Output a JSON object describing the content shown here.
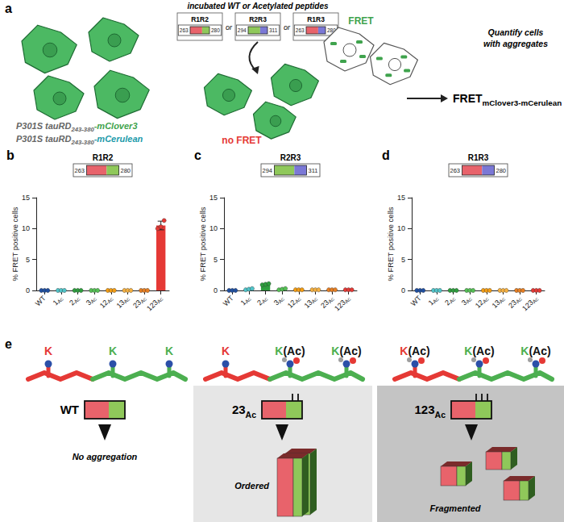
{
  "panel_a": {
    "letter": "a",
    "incubation_label": "incubated WT or Acetylated peptides",
    "peptides": [
      {
        "label": "R1R2",
        "start": 263,
        "end": 280,
        "colors": [
          "#e8636b",
          "#8fc85a"
        ]
      },
      {
        "label": "R2R3",
        "start": 294,
        "end": 311,
        "colors": [
          "#8fc85a",
          "#7b78d6"
        ]
      },
      {
        "label": "R1R3",
        "start": 263,
        "end": 280,
        "colors": [
          "#e8636b",
          "#7b78d6"
        ]
      }
    ],
    "separator": "or",
    "constructs": [
      {
        "text": "P301S tauRD",
        "sub": "243-380",
        "suffix": "-mClover3",
        "color": "#3fa34d"
      },
      {
        "text": "P301S tauRD",
        "sub": "243-380",
        "suffix": "-mCerulean",
        "color": "#1b9aaa"
      }
    ],
    "fret_label": "FRET",
    "no_fret_label": "no FRET",
    "quantify_label": [
      "Quantify cells",
      "with aggregates"
    ],
    "readout": {
      "text": "FRET",
      "sub": "mClover3-mCerulean"
    }
  },
  "chart_data": [
    {
      "letter": "b",
      "type": "bar",
      "title": "R1R2",
      "peptide": {
        "start": 263,
        "end": 280,
        "colors": [
          "#e8636b",
          "#8fc85a"
        ]
      },
      "categories": [
        "WT",
        "1Ac",
        "2Ac",
        "3Ac",
        "12Ac",
        "13Ac",
        "23Ac",
        "123Ac"
      ],
      "values": [
        0,
        0,
        0,
        0,
        0,
        0,
        0,
        10.5
      ],
      "replicates": [
        [
          0,
          0,
          0
        ],
        [
          0,
          0,
          0
        ],
        [
          0,
          0,
          0
        ],
        [
          0,
          0,
          0
        ],
        [
          0,
          0,
          0
        ],
        [
          0,
          0,
          0
        ],
        [
          0,
          0,
          0
        ],
        [
          10.0,
          10.3,
          11.3
        ]
      ],
      "errors": [
        0,
        0,
        0,
        0,
        0,
        0,
        0,
        0.7
      ],
      "colors": [
        "#1f4fa0",
        "#4fc3c8",
        "#2e9e3e",
        "#55c055",
        "#f39c12",
        "#f5b041",
        "#e67e22",
        "#e53935"
      ],
      "y_label": "% FRET positive cells",
      "ylim": [
        0,
        15
      ],
      "yticks": [
        0,
        5,
        10,
        15
      ],
      "grid": false,
      "marker": "circle"
    },
    {
      "letter": "c",
      "type": "bar",
      "title": "R2R3",
      "peptide": {
        "start": 294,
        "end": 311,
        "colors": [
          "#8fc85a",
          "#7b78d6"
        ]
      },
      "categories": [
        "WT",
        "1Ac",
        "2Ac",
        "3Ac",
        "12Ac",
        "13Ac",
        "23Ac",
        "123Ac"
      ],
      "values": [
        0,
        0.2,
        1.0,
        0.2,
        0.1,
        0.1,
        0.1,
        0.1
      ],
      "replicates": [
        [
          0,
          0,
          0
        ],
        [
          0.1,
          0.2,
          0.3
        ],
        [
          0.9,
          1.0,
          1.1
        ],
        [
          0.1,
          0.2,
          0.3
        ],
        [
          0.1,
          0.1,
          0.1
        ],
        [
          0.1,
          0.1,
          0.1
        ],
        [
          0.1,
          0.1,
          0.1
        ],
        [
          0.1,
          0.1,
          0.1
        ]
      ],
      "errors": [
        0,
        0,
        0.1,
        0,
        0,
        0,
        0,
        0
      ],
      "colors": [
        "#1f4fa0",
        "#4fc3c8",
        "#2e9e3e",
        "#55c055",
        "#f39c12",
        "#f5b041",
        "#e67e22",
        "#e53935"
      ],
      "y_label": "% FRET positive cells",
      "ylim": [
        0,
        15
      ],
      "yticks": [
        0,
        5,
        10,
        15
      ],
      "grid": false,
      "marker": "circle"
    },
    {
      "letter": "d",
      "type": "bar",
      "title": "R1R3",
      "peptide": {
        "start": 263,
        "end": 280,
        "colors": [
          "#e8636b",
          "#7b78d6"
        ]
      },
      "categories": [
        "WT",
        "1Ac",
        "2Ac",
        "3Ac",
        "12Ac",
        "13Ac",
        "23Ac",
        "123Ac"
      ],
      "values": [
        0,
        0,
        0,
        0,
        0,
        0,
        0,
        0
      ],
      "replicates": [
        [
          0,
          0,
          0
        ],
        [
          0,
          0,
          0
        ],
        [
          0,
          0,
          0
        ],
        [
          0,
          0,
          0
        ],
        [
          0,
          0,
          0
        ],
        [
          0,
          0,
          0
        ],
        [
          0,
          0,
          0
        ],
        [
          0,
          0,
          0
        ]
      ],
      "errors": [
        0,
        0,
        0,
        0,
        0,
        0,
        0,
        0
      ],
      "colors": [
        "#1f4fa0",
        "#4fc3c8",
        "#2e9e3e",
        "#55c055",
        "#f39c12",
        "#f5b041",
        "#e67e22",
        "#e53935"
      ],
      "y_label": "% FRET positive cells",
      "ylim": [
        0,
        15
      ],
      "yticks": [
        0,
        5,
        10,
        15
      ],
      "grid": false,
      "marker": "circle"
    }
  ],
  "panel_e": {
    "letter": "e",
    "residue_colors": [
      "#e53935",
      "#4caf50",
      "#4caf50"
    ],
    "states": [
      {
        "residues": [
          "K",
          "K",
          "K"
        ],
        "label": "WT",
        "outcome": "No aggregation",
        "background": null
      },
      {
        "residues": [
          "K",
          "K(Ac)",
          "K(Ac)"
        ],
        "label": "23Ac",
        "outcome": "Ordered",
        "background": "#e6e6e6"
      },
      {
        "residues": [
          "K(Ac)",
          "K(Ac)",
          "K(Ac)"
        ],
        "label": "123Ac",
        "outcome": "Fragmented",
        "background": "#c4c4c4"
      }
    ]
  }
}
